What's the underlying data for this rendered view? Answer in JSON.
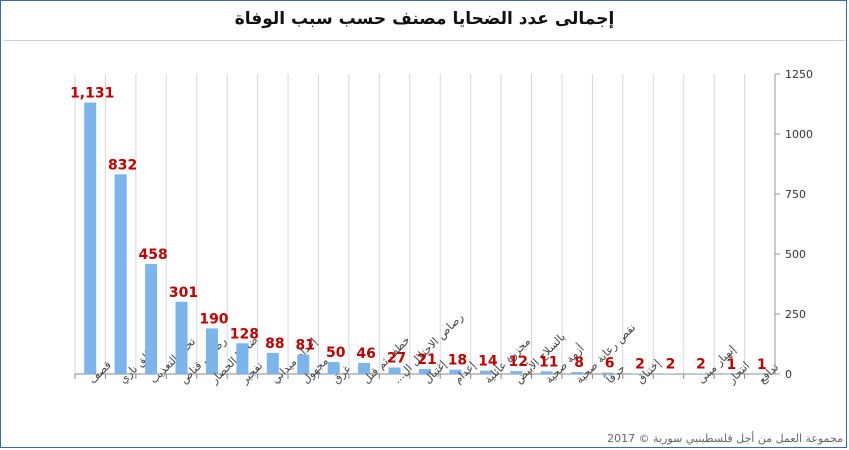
{
  "title": "إجمالى عدد الضحايا مصنف حسب سبب الوفاة",
  "copyright": "مجموعة العمل من أجل فلسطينيي سورية © 2017",
  "chart_data": {
    "type": "bar",
    "categories": [
      "قصف",
      "طلق ناري",
      "تحت التعذيب",
      "رصاص قناص",
      "ضحايا الحصار",
      "تفجير",
      "إعدام ميداني",
      "مجهول",
      "غرق",
      "خطف ثم قتل",
      "رصاص الاحتلال ال...",
      "إغتيال",
      "إعدام",
      "مجزرة عائلية",
      "بالسلاح الأبيض",
      "أزمة صحية",
      "نقص رعاية صحية",
      "حرقاً",
      "إختناق",
      "",
      "إنهيار مبنى",
      "انتحار",
      "تدافع"
    ],
    "values": [
      1131,
      832,
      458,
      301,
      190,
      128,
      88,
      81,
      50,
      46,
      27,
      21,
      18,
      14,
      12,
      11,
      8,
      6,
      2,
      2,
      2,
      1,
      1
    ],
    "data_labels": [
      "1,131",
      "832",
      "458",
      "301",
      "190",
      "128",
      "88",
      "81",
      "50",
      "46",
      "27",
      "21",
      "18",
      "14",
      "12",
      "11",
      "8",
      "6",
      "2",
      "2",
      "2",
      "1",
      "1"
    ],
    "ylim": [
      0,
      1250
    ],
    "yticks": [
      0,
      250,
      500,
      750,
      1000,
      1250
    ],
    "ytick_labels": [
      "0",
      "250",
      "500",
      "750",
      "1000",
      "1250"
    ],
    "y_axis_side": "right",
    "grid": "vertical",
    "colors": {
      "bar": "#7cb5ec",
      "label": "#c00000",
      "grid": "#d8d8d8",
      "border": "#2f6db5"
    }
  }
}
